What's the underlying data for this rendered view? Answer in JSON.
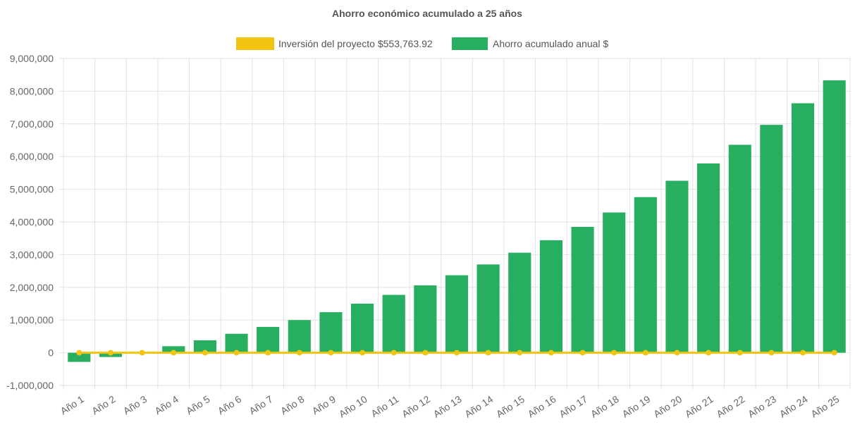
{
  "chart_data": {
    "type": "bar",
    "title": "Ahorro económico acumulado a 25 años",
    "categories": [
      "Año 1",
      "Año 2",
      "Año 3",
      "Año 4",
      "Año 5",
      "Año 6",
      "Año 7",
      "Año 8",
      "Año 9",
      "Año 10",
      "Año 11",
      "Año 12",
      "Año 13",
      "Año 14",
      "Año 15",
      "Año 16",
      "Año 17",
      "Año 18",
      "Año 19",
      "Año 20",
      "Año 21",
      "Año 22",
      "Año 23",
      "Año 24",
      "Año 25"
    ],
    "series": [
      {
        "name": "Inversión del proyecto $553,763.92",
        "kind": "line",
        "color": "#f1c40f",
        "values": [
          0,
          0,
          0,
          0,
          0,
          0,
          0,
          0,
          0,
          0,
          0,
          0,
          0,
          0,
          0,
          0,
          0,
          0,
          0,
          0,
          0,
          0,
          0,
          0,
          0
        ]
      },
      {
        "name": "Ahorro acumulado anual $",
        "kind": "bar",
        "color": "#27ae60",
        "values": [
          -280000,
          -130000,
          15000,
          200000,
          380000,
          580000,
          790000,
          1000000,
          1240000,
          1500000,
          1770000,
          2060000,
          2370000,
          2700000,
          3060000,
          3440000,
          3850000,
          4290000,
          4760000,
          5260000,
          5790000,
          6360000,
          6970000,
          7630000,
          8330000
        ]
      }
    ],
    "ylim": [
      -1000000,
      9000000
    ],
    "yticks": [
      "9,000,000",
      "8,000,000",
      "7,000,000",
      "6,000,000",
      "5,000,000",
      "4,000,000",
      "3,000,000",
      "2,000,000",
      "1,000,000",
      "0",
      "-1,000,000"
    ],
    "grid": true,
    "legend_position": "top"
  }
}
